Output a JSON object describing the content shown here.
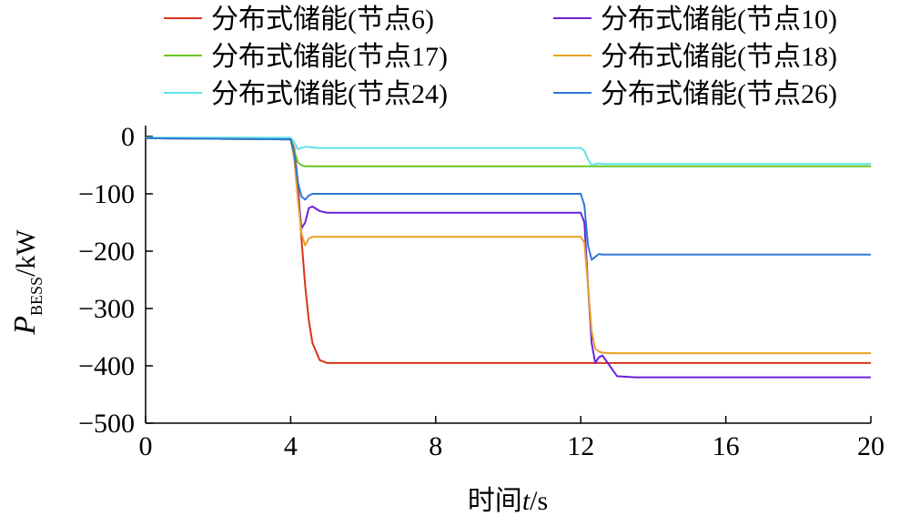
{
  "chart_data": {
    "type": "line",
    "xlabel": {
      "text": "时间",
      "var": "t",
      "unit": "/s"
    },
    "ylabel": {
      "var": "P",
      "sub": "BESS",
      "unit": "/kW"
    },
    "x": [
      0,
      4,
      4.1,
      4.2,
      4.3,
      4.4,
      4.5,
      4.6,
      4.8,
      5,
      5.5,
      12,
      12.1,
      12.2,
      12.3,
      12.4,
      12.5,
      12.6,
      12.8,
      13,
      13.5,
      20
    ],
    "series": [
      {
        "name": "分布式储能(节点6)",
        "color": "#d8351a",
        "values": [
          -3,
          -5,
          -20,
          -80,
          -180,
          -260,
          -320,
          -360,
          -390,
          -395,
          -395,
          -395,
          -395,
          -395,
          -395,
          -395,
          -395,
          -395,
          -395,
          -395,
          -395,
          -395
        ]
      },
      {
        "name": "分布式储能(节点10)",
        "color": "#6a22d8",
        "values": [
          -3,
          -5,
          -30,
          -100,
          -160,
          -150,
          -125,
          -122,
          -130,
          -133,
          -133,
          -133,
          -150,
          -260,
          -360,
          -395,
          -385,
          -382,
          -400,
          -418,
          -420,
          -420
        ]
      },
      {
        "name": "分布式储能(节点17)",
        "color": "#6cc624",
        "values": [
          -3,
          -5,
          -25,
          -45,
          -50,
          -52,
          -52,
          -52,
          -52,
          -52,
          -52,
          -52,
          -52,
          -52,
          -52,
          -52,
          -52,
          -52,
          -52,
          -52,
          -52,
          -52
        ]
      },
      {
        "name": "分布式储能(节点18)",
        "color": "#e8a025",
        "values": [
          -3,
          -5,
          -40,
          -110,
          -170,
          -190,
          -178,
          -175,
          -175,
          -175,
          -175,
          -175,
          -185,
          -260,
          -340,
          -370,
          -375,
          -377,
          -378,
          -378,
          -378,
          -378
        ]
      },
      {
        "name": "分布式储能(节点24)",
        "color": "#5fe3e6",
        "values": [
          -2,
          -2,
          -10,
          -22,
          -20,
          -18,
          -18,
          -19,
          -20,
          -20,
          -20,
          -20,
          -25,
          -40,
          -50,
          -48,
          -47,
          -48,
          -48,
          -48,
          -48,
          -48
        ]
      },
      {
        "name": "分布式储能(节点26)",
        "color": "#2f78d4",
        "values": [
          -3,
          -5,
          -30,
          -80,
          -105,
          -110,
          -103,
          -100,
          -100,
          -100,
          -100,
          -100,
          -120,
          -190,
          -215,
          -210,
          -205,
          -206,
          -206,
          -206,
          -206,
          -206
        ]
      }
    ],
    "xlim": [
      0,
      20
    ],
    "xticks": [
      0,
      4,
      8,
      12,
      16,
      20
    ],
    "ylim": [
      -500,
      0
    ],
    "yticks": [
      {
        "value": -500,
        "label": "−500"
      },
      {
        "value": -400,
        "label": "−400"
      },
      {
        "value": -300,
        "label": "−300"
      },
      {
        "value": -200,
        "label": "−200"
      },
      {
        "value": -100,
        "label": "−100"
      },
      0
    ],
    "legend": "top"
  }
}
